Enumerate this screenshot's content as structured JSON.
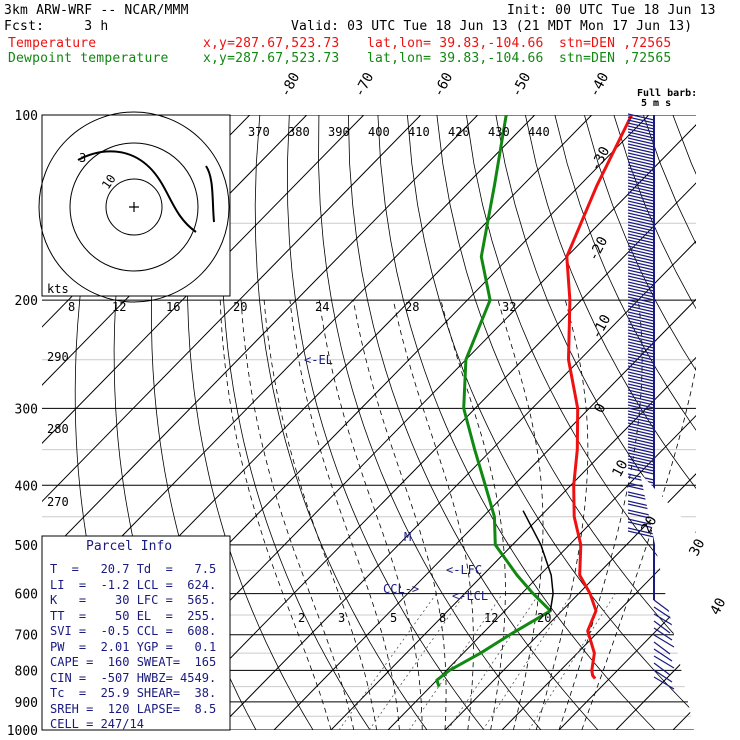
{
  "header": {
    "model": "3km ARW-WRF -- NCAR/MMM",
    "init": "Init: 00 UTC Tue 18 Jun 13",
    "fcst": "Fcst:     3 h",
    "valid": "Valid: 03 UTC Tue 18 Jun 13 (21 MDT Mon 17 Jun 13)",
    "temp_label": "Temperature",
    "dew_label": "Dewpoint temperature",
    "xy": "x,y=287.67,523.73",
    "latlon": "lat,lon= 39.83,-104.66",
    "stn": "stn=DEN ,72565",
    "temp_color": "#ee1111",
    "dew_color": "#118811"
  },
  "chart_data": {
    "type": "line",
    "pressure_ticks": [
      "100",
      "200",
      "300",
      "400",
      "500",
      "600",
      "700",
      "800",
      "900",
      "1000"
    ],
    "isotherm_labels": [
      "-80",
      "-70",
      "-60",
      "-50",
      "-40",
      "-30",
      "-20",
      "-10",
      "0",
      "10",
      "20",
      "30",
      "40"
    ],
    "theta_labels": [
      "370",
      "380",
      "390",
      "400",
      "410",
      "420",
      "430",
      "440"
    ],
    "dry_adiabat_labels": [
      "290",
      "280",
      "270"
    ],
    "mixing_ratio_labels": [
      "2",
      "3",
      "5",
      "8",
      "12",
      "20"
    ],
    "hodo_labels": {
      "units": "kts",
      "ticks": [
        "8",
        "12",
        "16",
        "20",
        "24",
        "28",
        "32"
      ],
      "rings": [
        "3",
        "10"
      ]
    },
    "barb_legend": [
      "Full barb:",
      "5 m s"
    ],
    "series": [
      {
        "name": "Temperature",
        "color": "#ee1111",
        "x": [
          27.5,
          26.5,
          25.5,
          23.0,
          18.0,
          16.0,
          12.0,
          7.0,
          2.0,
          -4.0,
          -9.5,
          -15.0,
          -22.0,
          -32.0,
          -42.0,
          -50.0,
          -57.0,
          -63.0
        ],
        "y": [
          825,
          815,
          800,
          750,
          690,
          640,
          600,
          560,
          500,
          450,
          400,
          350,
          300,
          250,
          200,
          170,
          130,
          100
        ]
      },
      {
        "name": "Dewpoint temperature",
        "color": "#118811",
        "x": [
          1.5,
          0.0,
          0.5,
          3.0,
          5.0,
          8.0,
          2.0,
          -4.0,
          -13.0,
          -18.0,
          -25.0,
          -33.0,
          -42.0,
          -50.0,
          -56.0,
          -65.0,
          -75.0,
          -85.0
        ],
        "y": [
          850,
          830,
          800,
          750,
          700,
          640,
          600,
          560,
          500,
          450,
          400,
          350,
          300,
          250,
          200,
          170,
          130,
          100
        ]
      }
    ],
    "parcel_path": {
      "x": [
        8.0,
        5.5,
        2.0,
        -5.0,
        -14.0
      ],
      "y": [
        640,
        600,
        560,
        500,
        440
      ]
    },
    "annotations": [
      "<-LFC",
      "CCL->",
      "<-LCL",
      "<-EL",
      "M"
    ]
  },
  "parcel": {
    "title": "Parcel Info",
    "rows": [
      "T  =   20.7 Td  =   7.5",
      "LI  =  -1.2 LCL =  624.",
      "K   =    30 LFC =  565.",
      "TT  =    50 EL  =  255.",
      "SVI =  -0.5 CCL =  608.",
      "PW  =  2.01 YGP =   0.1",
      "CAPE =  160 SWEAT=  165",
      "CIN =  -507 HWBZ= 4549.",
      "Tc  =  25.9 SHEAR=  38.",
      "SREH =  120 LAPSE=  8.5",
      "CELL = 247/14"
    ]
  }
}
